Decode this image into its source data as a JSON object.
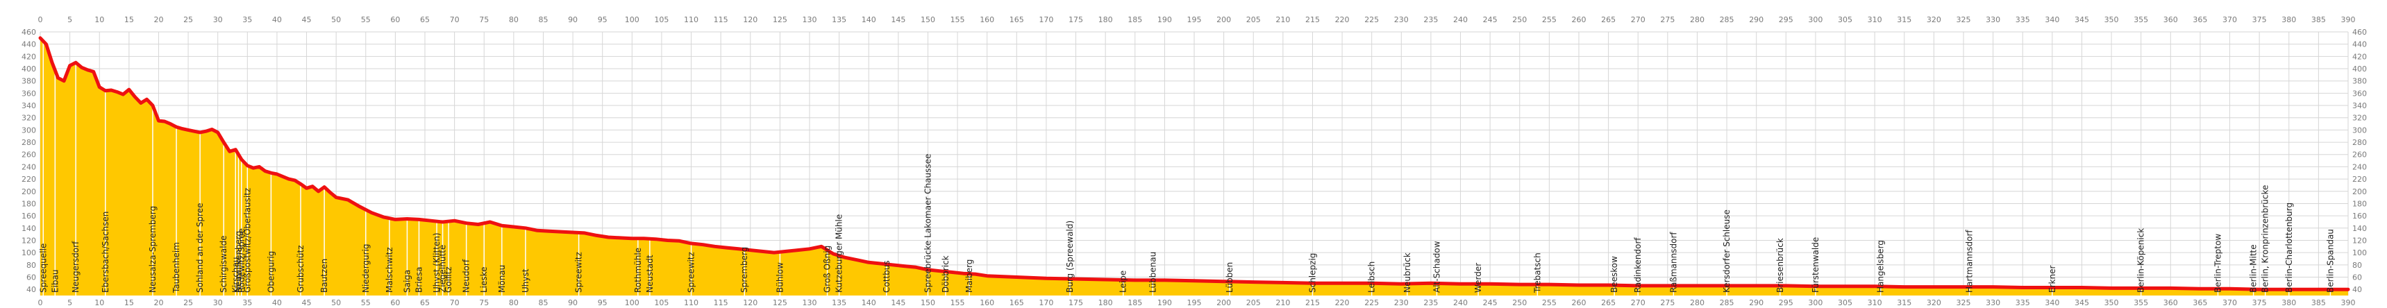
{
  "chart_data": {
    "type": "area",
    "title": "",
    "xlabel": "",
    "ylabel": "",
    "xlim": [
      0,
      390
    ],
    "ylim": [
      0,
      460
    ],
    "x_ticks": [
      0,
      5,
      10,
      15,
      20,
      25,
      30,
      35,
      40,
      45,
      50,
      55,
      60,
      65,
      70,
      75,
      80,
      85,
      90,
      95,
      100,
      105,
      110,
      115,
      120,
      125,
      130,
      135,
      140,
      145,
      150,
      155,
      160,
      165,
      170,
      175,
      180,
      185,
      190,
      195,
      200,
      205,
      210,
      215,
      220,
      225,
      230,
      235,
      240,
      245,
      250,
      255,
      260,
      265,
      270,
      275,
      280,
      285,
      290,
      295,
      300,
      305,
      310,
      315,
      320,
      325,
      330,
      335,
      340,
      345,
      350,
      355,
      360,
      365,
      370,
      375,
      380,
      385,
      390
    ],
    "y_ticks": [
      40,
      60,
      80,
      100,
      120,
      140,
      160,
      180,
      200,
      220,
      240,
      260,
      280,
      300,
      320,
      340,
      360,
      380,
      400,
      420,
      440,
      460
    ],
    "grid": true,
    "colors": {
      "fill": "#ffc800",
      "line": "#ee1111",
      "grid": "#d6d6d6",
      "text": "#7a7a7a"
    },
    "series": [
      {
        "x": [
          0,
          1,
          2,
          3,
          4,
          5,
          6,
          7,
          8,
          9,
          10,
          11,
          12,
          13,
          14,
          15,
          16,
          17,
          18,
          19,
          20,
          21,
          22,
          23,
          24,
          25,
          26,
          27,
          28,
          29,
          30,
          31,
          32,
          33,
          34,
          35,
          36,
          37,
          38,
          39,
          40,
          41,
          42,
          43,
          44,
          45,
          46,
          47,
          48,
          49,
          50,
          52,
          54,
          56,
          58,
          60,
          62,
          64,
          66,
          68,
          70,
          72,
          74,
          76,
          78,
          80,
          82,
          84,
          86,
          88,
          90,
          92,
          94,
          96,
          98,
          100,
          102,
          104,
          106,
          108,
          110,
          112,
          114,
          116,
          118,
          120,
          122,
          124,
          126,
          128,
          130,
          132,
          134,
          136,
          138,
          140,
          142,
          144,
          146,
          148,
          150,
          152,
          154,
          156,
          158,
          160,
          165,
          170,
          175,
          180,
          185,
          190,
          195,
          200,
          205,
          210,
          215,
          220,
          225,
          230,
          235,
          240,
          245,
          250,
          255,
          260,
          265,
          270,
          275,
          280,
          285,
          290,
          295,
          300,
          305,
          310,
          315,
          320,
          325,
          330,
          335,
          340,
          345,
          350,
          355,
          360,
          365,
          370,
          375,
          380,
          385,
          390
        ],
        "values": [
          450,
          440,
          410,
          385,
          380,
          405,
          410,
          402,
          398,
          395,
          370,
          364,
          365,
          362,
          358,
          366,
          354,
          344,
          350,
          340,
          315,
          314,
          310,
          305,
          302,
          300,
          298,
          296,
          298,
          301,
          296,
          280,
          265,
          268,
          252,
          242,
          238,
          240,
          233,
          230,
          228,
          224,
          220,
          218,
          212,
          205,
          208,
          200,
          207,
          198,
          190,
          186,
          175,
          165,
          158,
          154,
          155,
          154,
          152,
          150,
          152,
          148,
          146,
          150,
          144,
          142,
          140,
          136,
          135,
          134,
          133,
          132,
          128,
          125,
          124,
          123,
          123,
          122,
          120,
          119,
          115,
          113,
          110,
          108,
          106,
          104,
          102,
          100,
          102,
          104,
          106,
          110,
          98,
          92,
          88,
          84,
          82,
          80,
          78,
          76,
          72,
          70,
          68,
          66,
          65,
          62,
          60,
          58,
          57,
          56,
          55,
          55,
          54,
          53,
          52,
          51,
          50,
          50,
          50,
          49,
          50,
          49,
          49,
          48,
          48,
          47,
          47,
          46,
          46,
          46,
          46,
          46,
          46,
          45,
          45,
          45,
          44,
          44,
          44,
          44,
          43,
          43,
          43,
          42,
          42,
          42,
          41,
          41,
          40,
          40,
          40,
          40
        ]
      }
    ],
    "places": [
      {
        "km": 0.5,
        "name": "Spreequelle"
      },
      {
        "km": 2.5,
        "name": "Eibau"
      },
      {
        "km": 6,
        "name": "Neugersdorf"
      },
      {
        "km": 11,
        "name": "Ebersbach/Sachsen"
      },
      {
        "km": 19,
        "name": "Neusalza-Spremberg"
      },
      {
        "km": 23,
        "name": "Taubenheim"
      },
      {
        "km": 27,
        "name": "Sohland an der Spree"
      },
      {
        "km": 31,
        "name": "Schirgiswalde"
      },
      {
        "km": 33,
        "name": "Kirschau"
      },
      {
        "km": 33.5,
        "name": "Neuwilkenberg"
      },
      {
        "km": 34,
        "name": "Rodewitz/Spree"
      },
      {
        "km": 35,
        "name": "Großpostwitz/Oberlausitz"
      },
      {
        "km": 39,
        "name": "Obergurig"
      },
      {
        "km": 44,
        "name": "Grubschütz"
      },
      {
        "km": 48,
        "name": "Bautzen"
      },
      {
        "km": 55,
        "name": "Niedergurig"
      },
      {
        "km": 59,
        "name": "Malschwitz"
      },
      {
        "km": 62,
        "name": "Saiga"
      },
      {
        "km": 64,
        "name": "Briesa"
      },
      {
        "km": 67,
        "name": "Uhyst (Klitten)"
      },
      {
        "km": 68,
        "name": "Ziegelhütte"
      },
      {
        "km": 69,
        "name": "Gollitz"
      },
      {
        "km": 72,
        "name": "Neudorf"
      },
      {
        "km": 75,
        "name": "Lieske"
      },
      {
        "km": 78,
        "name": "Mönau"
      },
      {
        "km": 82,
        "name": "Uhyst"
      },
      {
        "km": 91,
        "name": "Spreewitz"
      },
      {
        "km": 101,
        "name": "Rothmühle"
      },
      {
        "km": 103,
        "name": "Neustadt"
      },
      {
        "km": 110,
        "name": "Spreewitz"
      },
      {
        "km": 119,
        "name": "Spremberg"
      },
      {
        "km": 125,
        "name": "Bühlow"
      },
      {
        "km": 133,
        "name": "Groß Oßnig"
      },
      {
        "km": 135,
        "name": "Kutzeburger Mühle"
      },
      {
        "km": 143,
        "name": "Cottbus"
      },
      {
        "km": 150,
        "name": "Spreebrücke Lakomaer Chaussee"
      },
      {
        "km": 153,
        "name": "Döbbrick"
      },
      {
        "km": 157,
        "name": "Maiberg"
      },
      {
        "km": 174,
        "name": "Burg (Spreewald)"
      },
      {
        "km": 183,
        "name": "Leipe"
      },
      {
        "km": 188,
        "name": "Lübbenau"
      },
      {
        "km": 201,
        "name": "Lübben"
      },
      {
        "km": 215,
        "name": "Schlepzig"
      },
      {
        "km": 225,
        "name": "Leibsch"
      },
      {
        "km": 231,
        "name": "Neubrück"
      },
      {
        "km": 236,
        "name": "Alt-Schadow"
      },
      {
        "km": 243,
        "name": "Werder"
      },
      {
        "km": 253,
        "name": "Trebatsch"
      },
      {
        "km": 266,
        "name": "Beeskow"
      },
      {
        "km": 270,
        "name": "Radinkendorf"
      },
      {
        "km": 276,
        "name": "Raßmannsdorf"
      },
      {
        "km": 285,
        "name": "Kersdorfer Schleuse"
      },
      {
        "km": 294,
        "name": "Briesenbrück"
      },
      {
        "km": 300,
        "name": "Fürstenwalde"
      },
      {
        "km": 311,
        "name": "Hangelsberg"
      },
      {
        "km": 326,
        "name": "Hartmannsdorf"
      },
      {
        "km": 340,
        "name": "Erkner"
      },
      {
        "km": 355,
        "name": "Berlin-Köpenick"
      },
      {
        "km": 368,
        "name": "Berlin-Treptow"
      },
      {
        "km": 374,
        "name": "Berlin-Mitte"
      },
      {
        "km": 376,
        "name": "Berlin, Kronprinzenbrücke"
      },
      {
        "km": 380,
        "name": "Berlin-Charlottenburg"
      },
      {
        "km": 387,
        "name": "Berlin-Spandau"
      }
    ]
  }
}
